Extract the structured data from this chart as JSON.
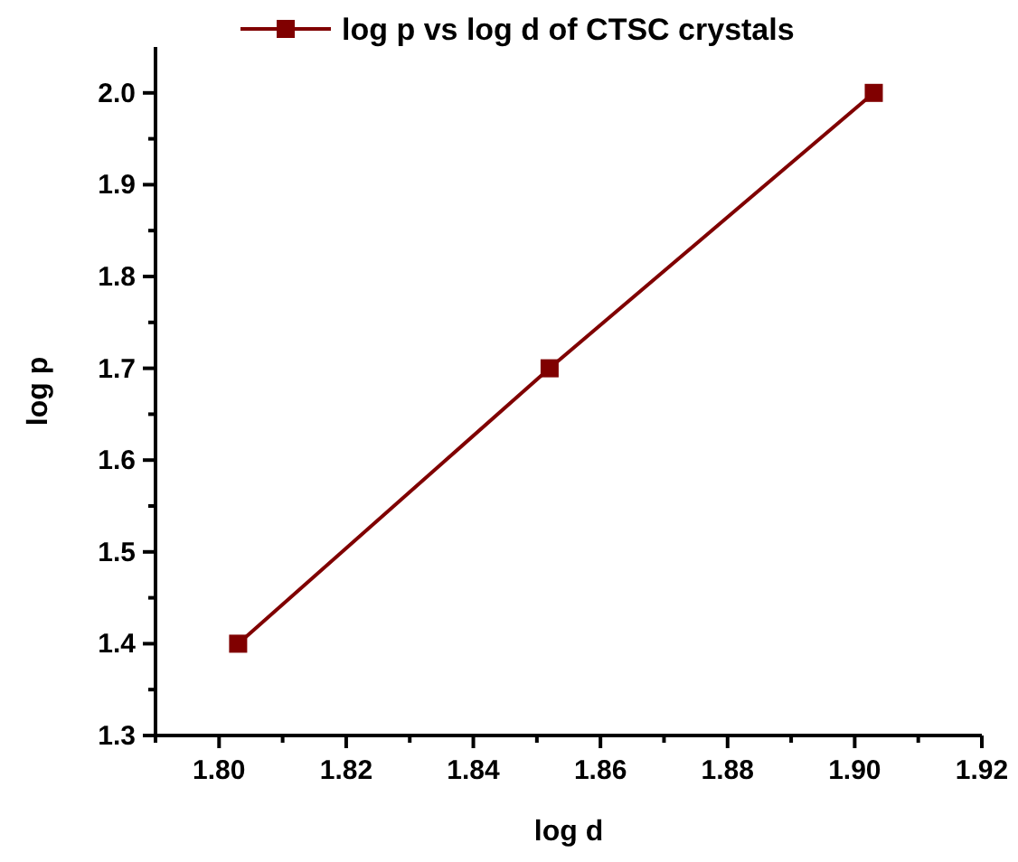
{
  "chart_data": {
    "type": "line",
    "xlabel": "log d",
    "ylabel": "log p",
    "x": [
      1.803,
      1.852,
      1.903
    ],
    "series": [
      {
        "name": "log p vs log d of CTSC crystals",
        "color": "#800000",
        "values": [
          1.4,
          1.7,
          2.0
        ]
      }
    ],
    "xlim": [
      1.79,
      1.92
    ],
    "xticks": [
      {
        "value": 1.79,
        "label": null
      },
      {
        "value": 1.8,
        "label": "1.80"
      },
      {
        "value": 1.81,
        "label": null
      },
      1.82,
      {
        "value": 1.83,
        "label": null
      },
      1.84,
      {
        "value": 1.85,
        "label": null
      },
      1.86,
      {
        "value": 1.87,
        "label": null
      },
      1.88,
      {
        "value": 1.89,
        "label": null
      },
      {
        "value": 1.9,
        "label": "1.90"
      },
      {
        "value": 1.91,
        "label": null
      },
      1.92
    ],
    "ylim": [
      1.3,
      2.05
    ],
    "yticks": [
      1.3,
      {
        "value": 1.35,
        "label": null
      },
      1.4,
      {
        "value": 1.45,
        "label": null
      },
      1.5,
      {
        "value": 1.55,
        "label": null
      },
      1.6,
      {
        "value": 1.65,
        "label": null
      },
      1.7,
      {
        "value": 1.75,
        "label": null
      },
      1.8,
      {
        "value": 1.85,
        "label": null
      },
      1.9,
      {
        "value": 1.95,
        "label": null
      },
      {
        "value": 2,
        "label": "2.0"
      }
    ],
    "marker": "square",
    "line_style": "solid",
    "grid": false,
    "legend": "top"
  }
}
